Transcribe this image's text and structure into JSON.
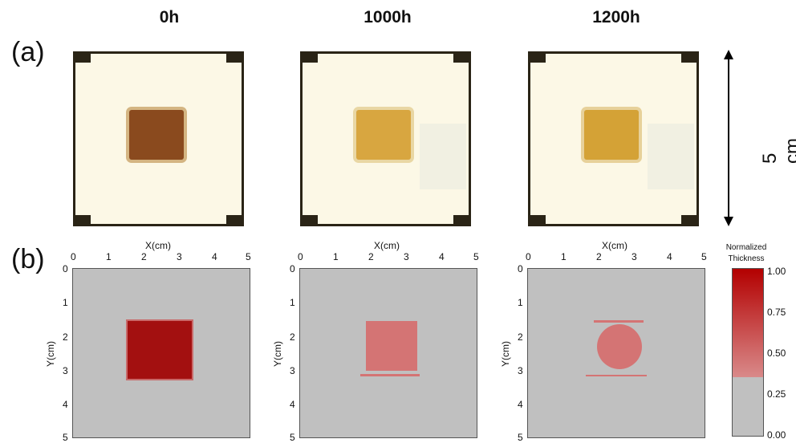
{
  "columns": [
    {
      "title": "0h"
    },
    {
      "title": "1000h"
    },
    {
      "title": "1200h"
    }
  ],
  "labels": {
    "a": "(a)",
    "b": "(b)"
  },
  "scale_bar": {
    "text": "5 cm"
  },
  "axes": {
    "x_title": "X(cm)",
    "y_title": "Y(cm)",
    "x_ticks": [
      "0",
      "1",
      "2",
      "3",
      "4",
      "5"
    ],
    "y_ticks": [
      "0",
      "1",
      "2",
      "3",
      "4",
      "5"
    ]
  },
  "colorbar": {
    "title_line1": "Normalized",
    "title_line2": "Thickness",
    "ticks": [
      "1.00",
      "0.75",
      "0.50",
      "0.25",
      "0.00"
    ],
    "top_color": "#b30000",
    "bottom_color": "#c0c0c0"
  },
  "colors": {
    "map_background": "#c0c0c0",
    "film_0h": "#a31010",
    "film_aged": "#d47474",
    "photo_pad_0h": "#8a4a1e",
    "photo_pad_aged": "#d8a640"
  }
}
